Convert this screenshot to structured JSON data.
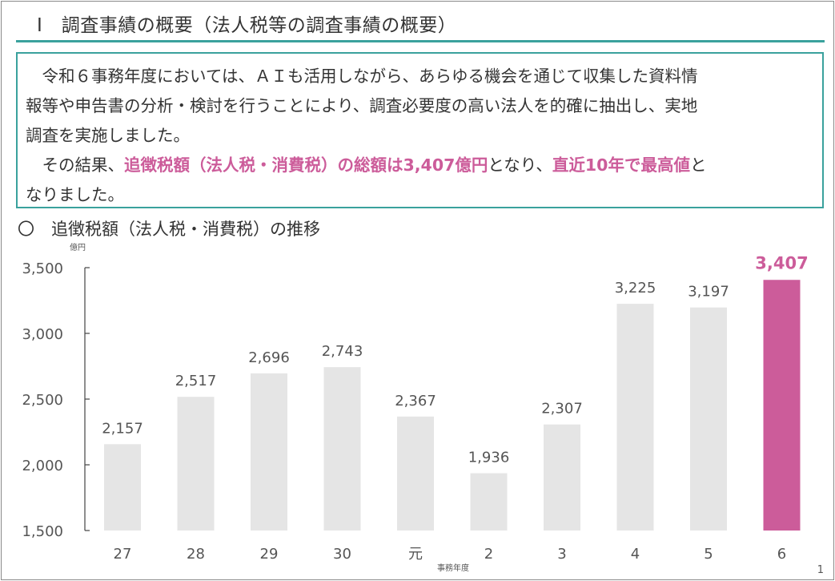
{
  "header": {
    "title": "Ⅰ　調査事績の概要（法人税等の調査事績の概要）"
  },
  "summary": {
    "line1": "　令和６事務年度においては、ＡＩも活用しながら、あらゆる機会を通じて収集した資料情",
    "line2": "報等や申告書の分析・検討を行うことにより、調査必要度の高い法人を的確に抽出し、実地",
    "line3": "調査を実施しました。",
    "line4_prefix": "　その結果、",
    "line4_hl1": "追徴税額（法人税・消費税）の総額は3,407億円",
    "line4_mid": "となり、",
    "line4_hl2": "直近10年で最高値",
    "line4_suffix": "と",
    "line5": "なりました。"
  },
  "section_title": "〇　追徴税額（法人税・消費税）の推移",
  "page_number": "1",
  "colors": {
    "accent": "#3aa19d",
    "highlight": "#cc5c9a",
    "bar": "#e5e5e5"
  },
  "chart_data": {
    "type": "bar",
    "title": "",
    "ylabel": "億円",
    "xlabel": "事務年度",
    "categories": [
      "27",
      "28",
      "29",
      "30",
      "元",
      "2",
      "3",
      "4",
      "5",
      "6"
    ],
    "values": [
      2157,
      2517,
      2696,
      2743,
      2367,
      1936,
      2307,
      3225,
      3197,
      3407
    ],
    "labels": [
      "2,157",
      "2,517",
      "2,696",
      "2,743",
      "2,367",
      "1,936",
      "2,307",
      "3,225",
      "3,197",
      "3,407"
    ],
    "highlight_index": 9,
    "ylim": [
      1500,
      3500
    ],
    "yticks": [
      1500,
      2000,
      2500,
      3000,
      3500
    ],
    "ytick_labels": [
      "1,500",
      "2,000",
      "2,500",
      "3,000",
      "3,500"
    ],
    "grid": false
  }
}
